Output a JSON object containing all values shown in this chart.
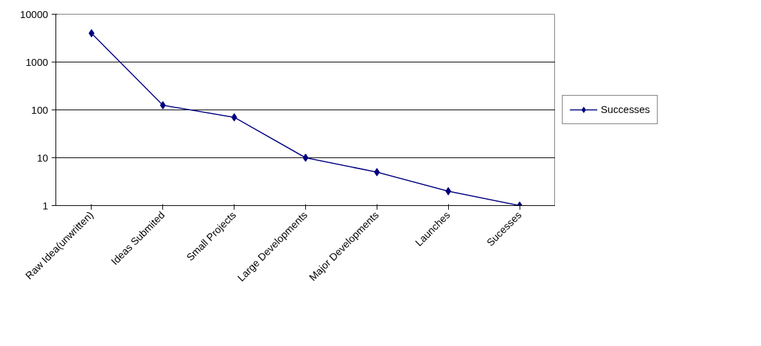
{
  "chart_data": {
    "type": "line",
    "categories": [
      "Raw Idea(unwritten)",
      "Ideas Submited",
      "Small Projects",
      "Large Developments",
      "Major Developments",
      "Launches",
      "Sucesses"
    ],
    "series": [
      {
        "name": "Successes",
        "color": "#000080",
        "values": [
          4000,
          125,
          70,
          10,
          5,
          2,
          1
        ]
      }
    ],
    "log": true,
    "ylim": [
      1,
      10000
    ],
    "yticks": [
      1,
      10,
      100,
      1000,
      10000
    ],
    "grid": "y",
    "legend": "right",
    "marker": "diamond",
    "line_style": "solid"
  }
}
